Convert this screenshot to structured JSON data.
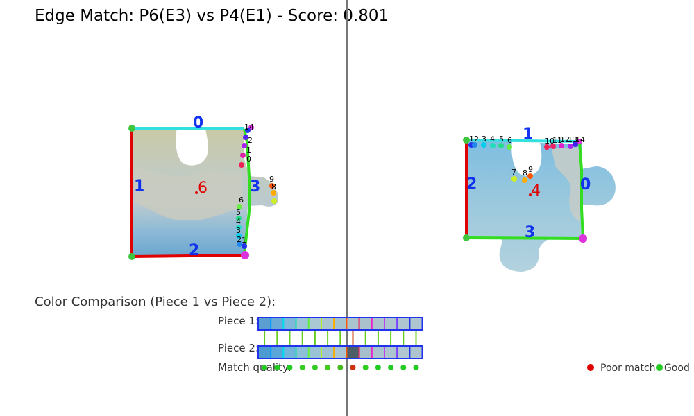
{
  "title": "Edge Match: P6(E3) vs P4(E1) - Score: 0.801",
  "piece_left": {
    "id": "6",
    "edge_labels": [
      "0",
      "1",
      "2",
      "3"
    ],
    "edge_colors": [
      "#33e0e0",
      "#e00000",
      "#e00000",
      "#33dd22"
    ],
    "corner_colors": [
      "#3ec63e",
      "#dd33dd",
      "#dd33dd",
      "#3ec63e"
    ],
    "top_point_labels": [
      "14",
      "2",
      "1",
      "0"
    ],
    "side_point_labels": [
      "6",
      "5",
      "4",
      "3",
      "2",
      "1"
    ],
    "tab_point_labels": [
      "9",
      "8"
    ]
  },
  "piece_right": {
    "id": "4",
    "edge_labels": [
      "1",
      "2",
      "3",
      "0"
    ],
    "edge_colors": [
      "#33e0e0",
      "#e00000",
      "#33dd22",
      "#33dd22"
    ],
    "corner_colors": [
      "#3ec63e",
      "#dd33dd",
      "#3ec63e",
      "#dd33dd"
    ],
    "top_point_labels": [
      "12",
      "3",
      "4",
      "5",
      "6",
      "10",
      "11",
      "12",
      "13",
      "14"
    ],
    "notch_point_labels": [
      "7",
      "8",
      "9"
    ]
  },
  "color_comparison": {
    "heading": "Color Comparison (Piece 1 vs Piece 2):",
    "row1_label": "Piece 1:",
    "row2_label": "Piece 2:",
    "quality_label": "Match quality:",
    "legend_poor": "Poor match",
    "legend_good": "Good",
    "legend_poor_color": "#e00000",
    "legend_good_color": "#22cc22",
    "swatch_border_colors": [
      "#2244ff",
      "#00aaff",
      "#00ddee",
      "#22ddaa",
      "#66ee44",
      "#bbee22",
      "#ffaa00",
      "#ff5500",
      "#ee2266",
      "#ee22cc",
      "#bb44ee",
      "#7744ff",
      "#2233ee"
    ],
    "piece1_fills": [
      "#5a9fcf",
      "#6aaad6",
      "#80b8da",
      "#9fc6d6",
      "#a9c8d4",
      "#acc6cf",
      "#a5c3cf",
      "#aac4ce",
      "#a9c2cc",
      "#adc4cf",
      "#aec5cf",
      "#afc6d1",
      "#aec6d0"
    ],
    "piece2_fills": [
      "#4c9ad0",
      "#5aa6d8",
      "#73b4dc",
      "#8cbfd8",
      "#99c4d6",
      "#9fc3d3",
      "#a8c5d1",
      "#4d5e66",
      "#a6bfca",
      "#abc3ce",
      "#aec5d0",
      "#b0c6d1",
      "#aec5cf"
    ],
    "connector_colors": [
      "#66cc22",
      "#66cc22",
      "#66cc22",
      "#66cc22",
      "#66cc22",
      "#66cc22",
      "#66cc22",
      "#cc4411",
      "#66cc22",
      "#66cc22",
      "#66cc22",
      "#66cc22",
      "#66cc22"
    ],
    "match_quality_colors": [
      "#22cc22",
      "#22cc22",
      "#22cc22",
      "#33cc22",
      "#33cc22",
      "#44cc22",
      "#44bb22",
      "#cc3311",
      "#33cc22",
      "#22cc22",
      "#22cc22",
      "#22cc22",
      "#22cc22"
    ]
  }
}
